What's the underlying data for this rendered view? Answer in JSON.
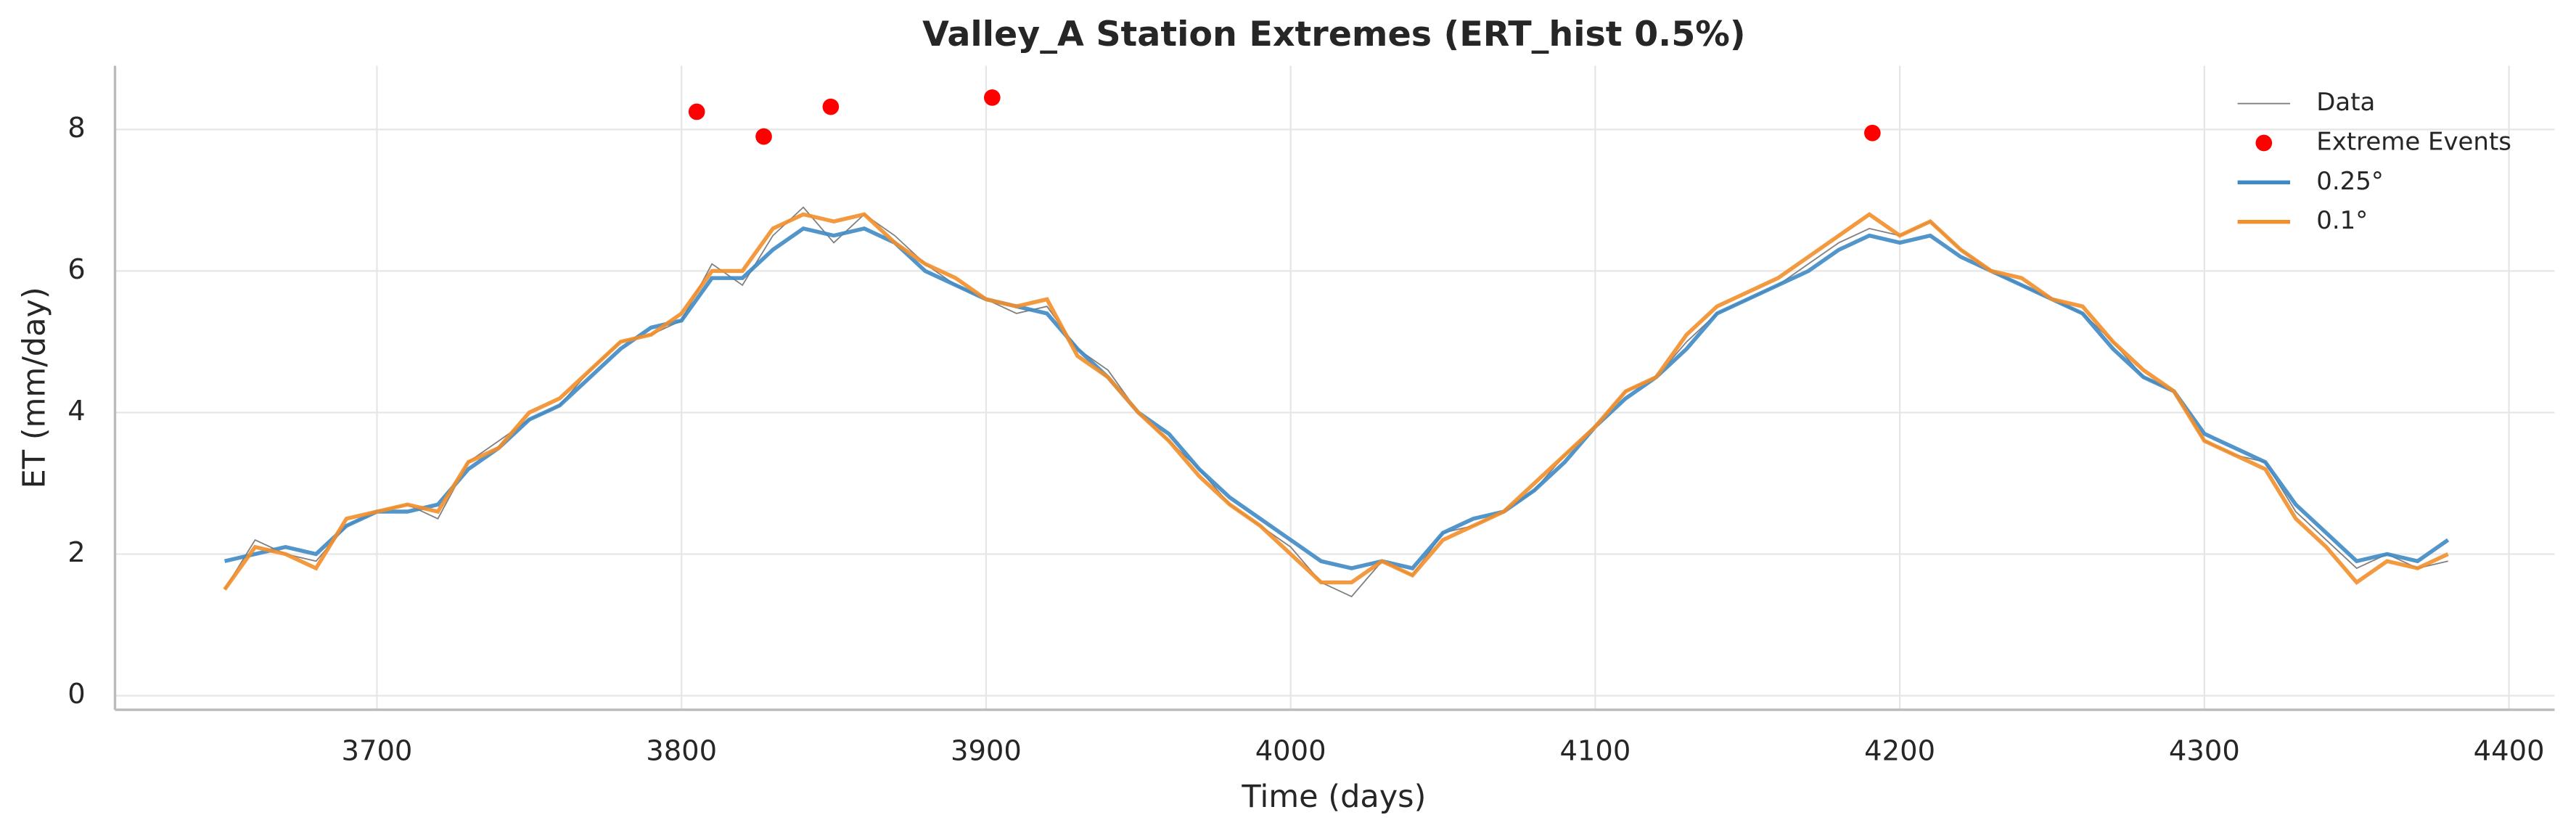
{
  "chart_data": {
    "type": "line",
    "title": "Valley_A Station Extremes (ERT_hist 0.5%)",
    "x_label": "Time (days)",
    "y_label": "ET (mm/day)",
    "x": [
      3650,
      3660,
      3670,
      3680,
      3690,
      3700,
      3710,
      3720,
      3730,
      3740,
      3750,
      3760,
      3770,
      3780,
      3790,
      3800,
      3810,
      3820,
      3830,
      3840,
      3850,
      3860,
      3870,
      3880,
      3890,
      3900,
      3910,
      3920,
      3930,
      3940,
      3950,
      3960,
      3970,
      3980,
      3990,
      4000,
      4010,
      4020,
      4030,
      4040,
      4050,
      4060,
      4070,
      4080,
      4090,
      4100,
      4110,
      4120,
      4130,
      4140,
      4150,
      4160,
      4170,
      4180,
      4190,
      4200,
      4210,
      4220,
      4230,
      4240,
      4250,
      4260,
      4270,
      4280,
      4290,
      4300,
      4310,
      4320,
      4330,
      4340,
      4350,
      4360,
      4370,
      4380
    ],
    "series": [
      {
        "name": "Data",
        "color": "#808080",
        "values": [
          1.5,
          2.2,
          2.0,
          1.9,
          2.4,
          2.6,
          2.7,
          2.5,
          3.3,
          3.6,
          3.9,
          4.1,
          4.6,
          5.0,
          5.1,
          5.3,
          6.1,
          5.8,
          6.5,
          6.9,
          6.4,
          6.8,
          6.5,
          6.1,
          5.8,
          5.6,
          5.4,
          5.5,
          4.9,
          4.6,
          4.0,
          3.6,
          3.2,
          2.7,
          2.4,
          2.1,
          1.6,
          1.4,
          1.9,
          1.7,
          2.3,
          2.4,
          2.6,
          2.9,
          3.4,
          3.8,
          4.3,
          4.5,
          5.0,
          5.4,
          5.6,
          5.8,
          6.1,
          6.4,
          6.6,
          6.5,
          6.7,
          6.3,
          6.0,
          5.8,
          5.6,
          5.4,
          5.0,
          4.5,
          4.3,
          3.6,
          3.4,
          3.3,
          2.6,
          2.2,
          1.8,
          2.0,
          1.8,
          1.9
        ]
      },
      {
        "name": "Extreme Events",
        "type": "scatter",
        "color": "#ff0000",
        "x": [
          3805,
          3827,
          3849,
          3902,
          4191
        ],
        "values": [
          8.25,
          7.9,
          8.32,
          8.45,
          7.95
        ]
      },
      {
        "name": "0.25°",
        "color": "#3f8ac4",
        "values": [
          1.9,
          2.0,
          2.1,
          2.0,
          2.4,
          2.6,
          2.6,
          2.7,
          3.2,
          3.5,
          3.9,
          4.1,
          4.5,
          4.9,
          5.2,
          5.3,
          5.9,
          5.9,
          6.3,
          6.6,
          6.5,
          6.6,
          6.4,
          6.0,
          5.8,
          5.6,
          5.5,
          5.4,
          4.9,
          4.5,
          4.0,
          3.7,
          3.2,
          2.8,
          2.5,
          2.2,
          1.9,
          1.8,
          1.9,
          1.8,
          2.3,
          2.5,
          2.6,
          2.9,
          3.3,
          3.8,
          4.2,
          4.5,
          4.9,
          5.4,
          5.6,
          5.8,
          6.0,
          6.3,
          6.5,
          6.4,
          6.5,
          6.2,
          6.0,
          5.8,
          5.6,
          5.4,
          4.9,
          4.5,
          4.3,
          3.7,
          3.5,
          3.3,
          2.7,
          2.3,
          1.9,
          2.0,
          1.9,
          2.2
        ]
      },
      {
        "name": "0.1°",
        "color": "#f28e2b",
        "values": [
          1.5,
          2.1,
          2.0,
          1.8,
          2.5,
          2.6,
          2.7,
          2.6,
          3.3,
          3.5,
          4.0,
          4.2,
          4.6,
          5.0,
          5.1,
          5.4,
          6.0,
          6.0,
          6.6,
          6.8,
          6.7,
          6.8,
          6.4,
          6.1,
          5.9,
          5.6,
          5.5,
          5.6,
          4.8,
          4.5,
          4.0,
          3.6,
          3.1,
          2.7,
          2.4,
          2.0,
          1.6,
          1.6,
          1.9,
          1.7,
          2.2,
          2.4,
          2.6,
          3.0,
          3.4,
          3.8,
          4.3,
          4.5,
          5.1,
          5.5,
          5.7,
          5.9,
          6.2,
          6.5,
          6.8,
          6.5,
          6.7,
          6.3,
          6.0,
          5.9,
          5.6,
          5.5,
          5.0,
          4.6,
          4.3,
          3.6,
          3.4,
          3.2,
          2.5,
          2.1,
          1.6,
          1.9,
          1.8,
          2.0
        ]
      }
    ],
    "xlim": [
      3614,
      4415
    ],
    "xticks": [
      3700,
      3800,
      3900,
      4000,
      4100,
      4200,
      4300,
      4400
    ],
    "ylim": [
      -0.2,
      8.9
    ],
    "yticks": [
      0,
      2,
      4,
      6,
      8
    ],
    "grid": true,
    "legend": "upper right"
  }
}
